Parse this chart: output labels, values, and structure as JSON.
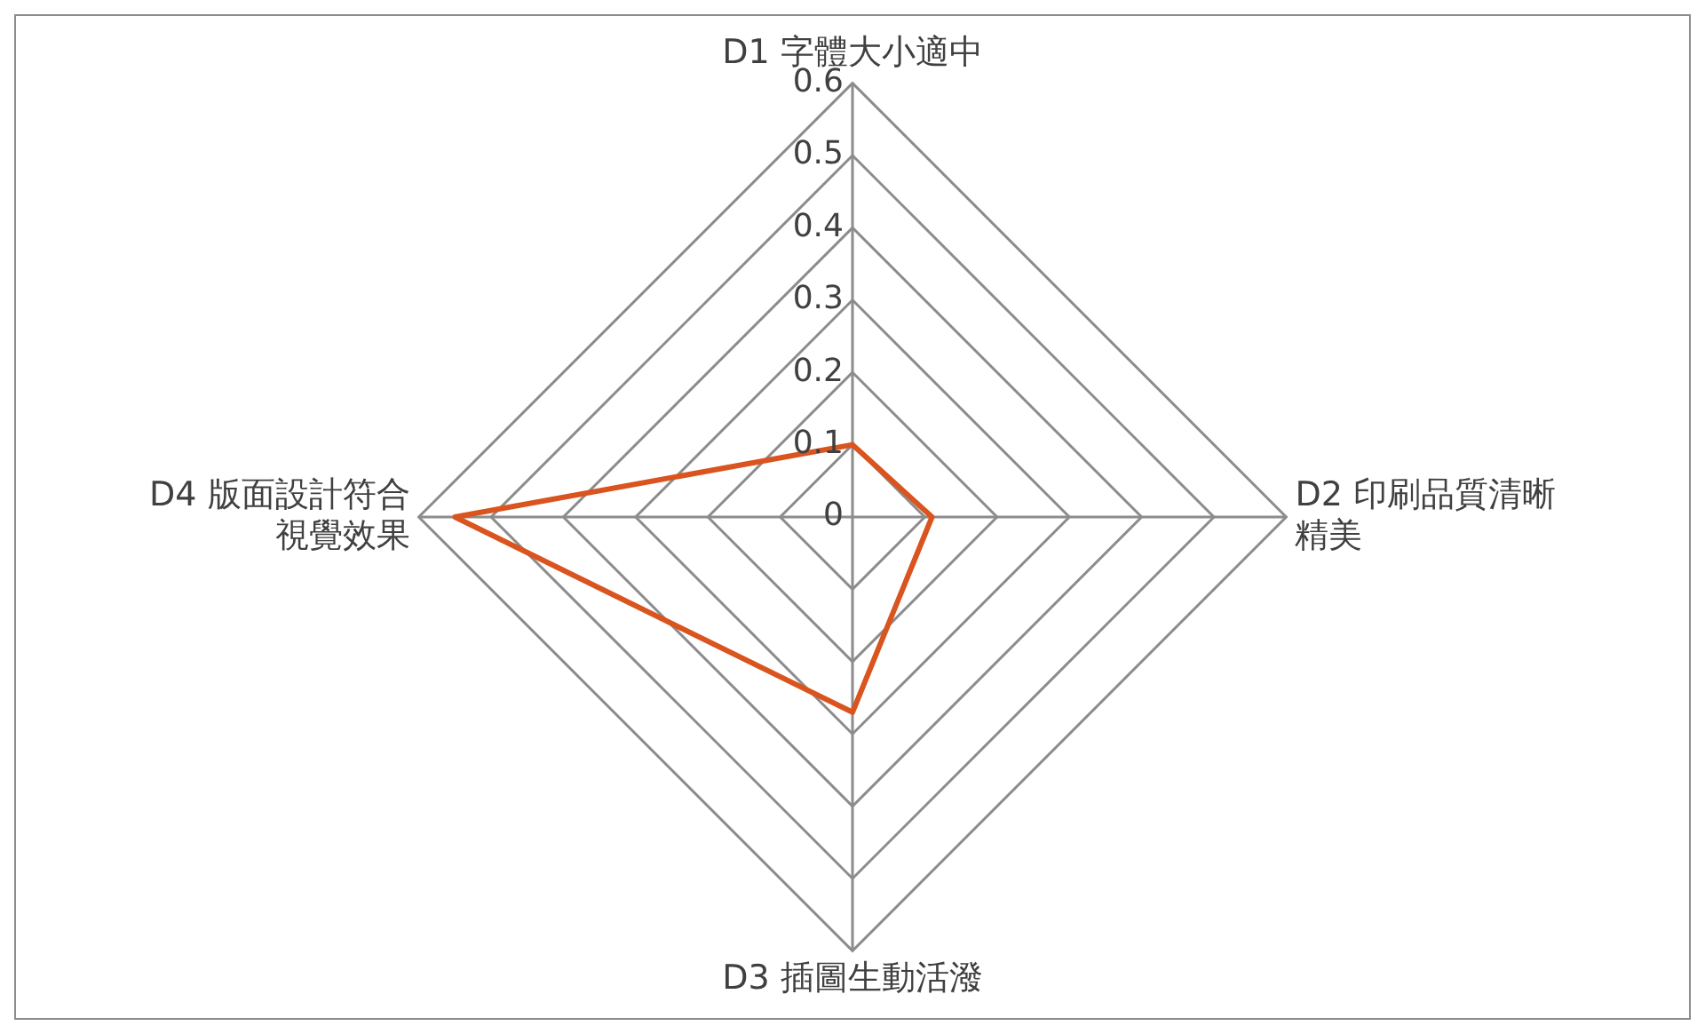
{
  "chart_data": {
    "type": "radar",
    "categories": [
      "D1 字體大小適中",
      "D2 印刷品質清晰精美",
      "D3 插圖生動活潑",
      "D4 版面設計符合視覺效果"
    ],
    "series": [
      {
        "color": "#d9541e",
        "values": [
          0.1,
          0.11,
          0.27,
          0.55
        ]
      }
    ],
    "ylim": [
      0,
      0.6
    ],
    "yticks": [
      0,
      0.1,
      0.2,
      0.3,
      0.4,
      0.5,
      0.6
    ],
    "grid": true,
    "legend": false,
    "marker": "none"
  }
}
